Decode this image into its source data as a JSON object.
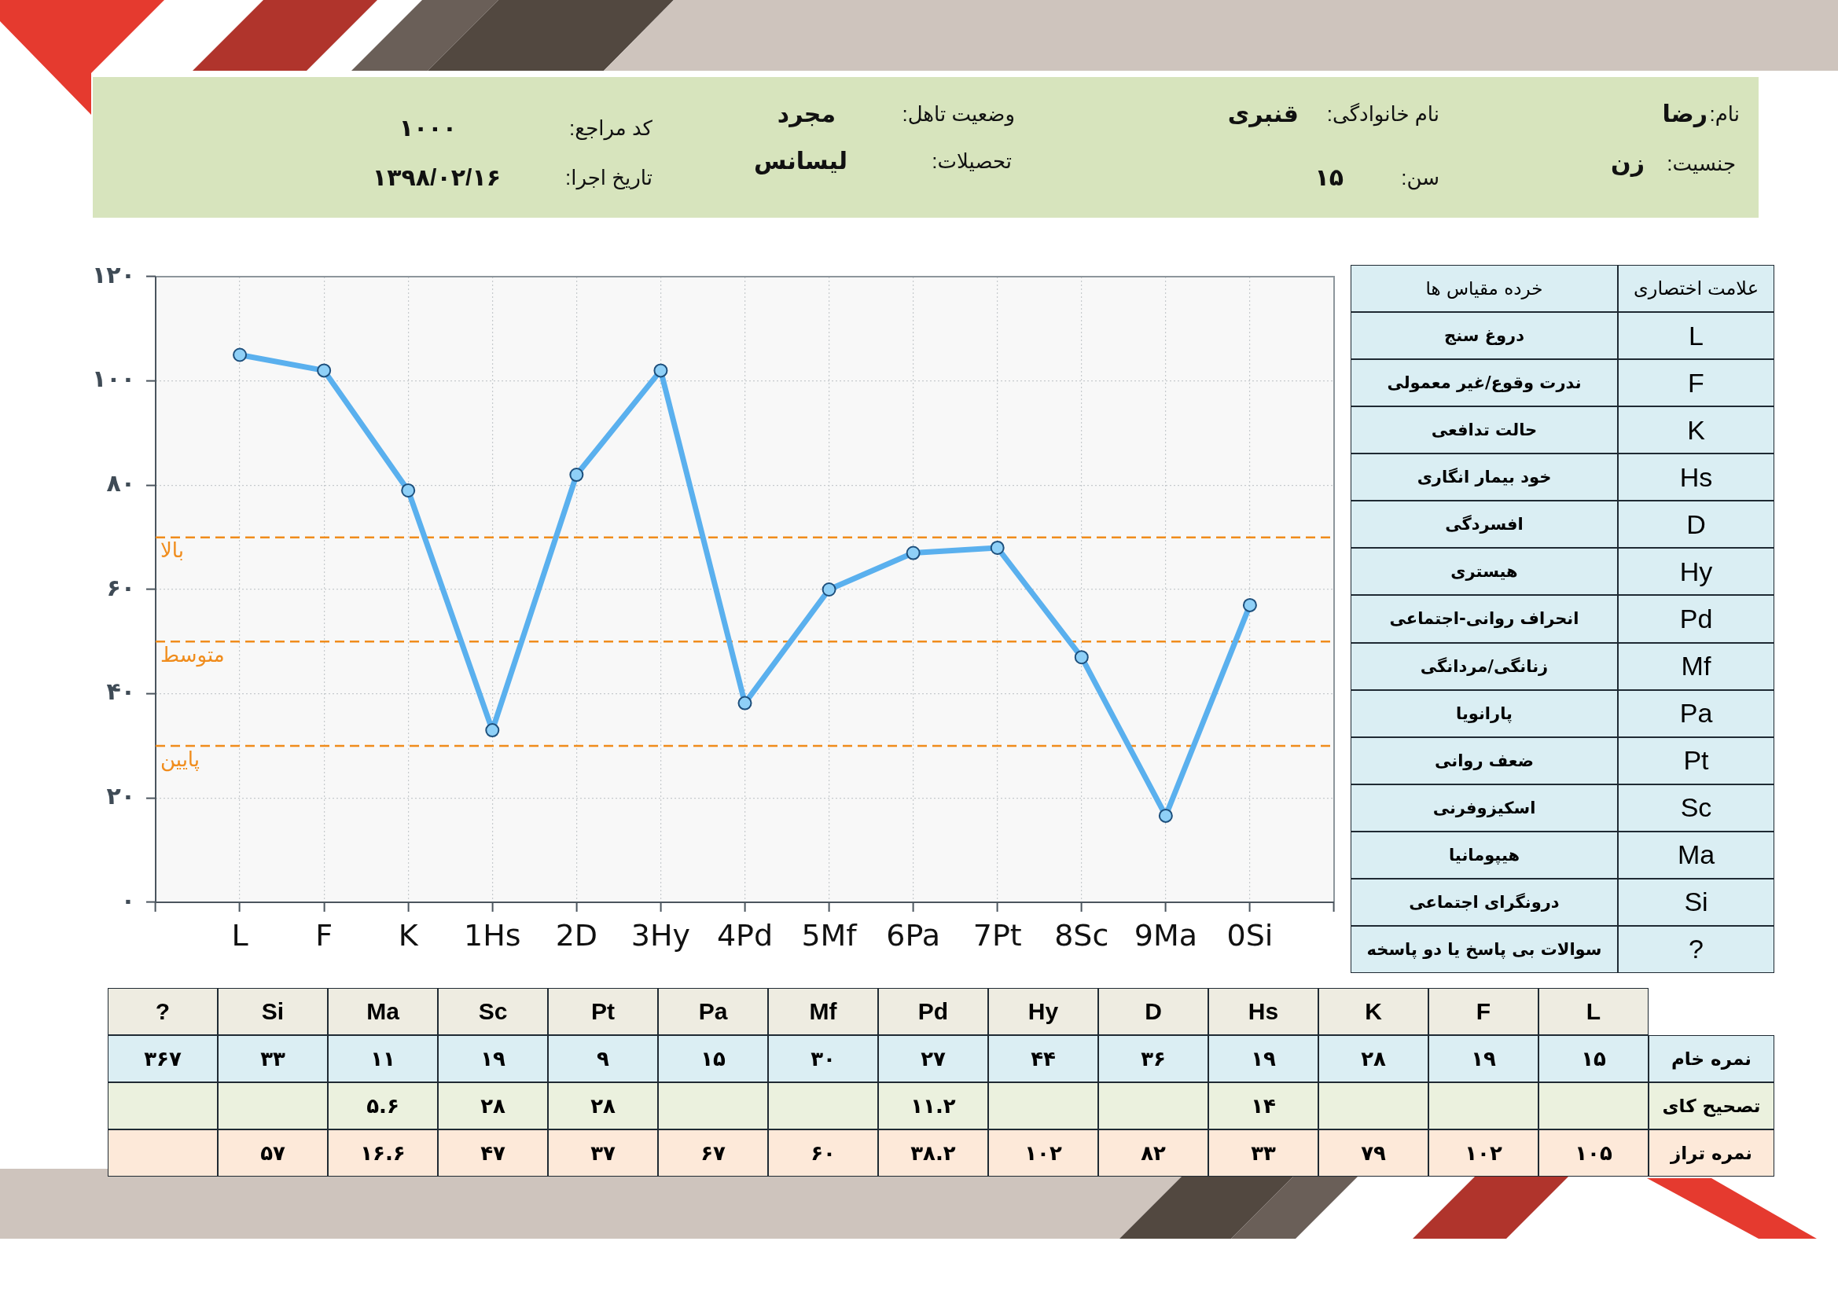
{
  "chart_data": [
    {
      "type": "other",
      "annotations": [
        "نام:",
        "رضا",
        "جنسیت:",
        "زن",
        "نام خانوادگی:",
        "قنبری",
        "سن:",
        "۱۵",
        "وضعیت تاهل:",
        "مجرد",
        "تحصیلات:",
        "لیسانس",
        "کد مراجع:",
        "۱۰۰۰",
        "تاریخ اجرا:",
        "۱۳۹۸/۰۲/۱۶"
      ]
    },
    {
      "type": "line",
      "categories": [
        "L",
        "F",
        "K",
        "1Hs",
        "2D",
        "3Hy",
        "4Pd",
        "5Mf",
        "6Pa",
        "7Pt",
        "8Sc",
        "9Ma",
        "0Si"
      ],
      "values": [
        105,
        102,
        79,
        33,
        82,
        102,
        38.2,
        60,
        67,
        68,
        47,
        16.6,
        57
      ],
      "color": "#5ab0ee",
      "ylim": [
        0,
        120
      ],
      "yticks": [
        {
          "value": 0,
          "label": "۰"
        },
        {
          "value": 20,
          "label": "۲۰"
        },
        {
          "value": 40,
          "label": "۴۰"
        },
        {
          "value": 60,
          "label": "۶۰"
        },
        {
          "value": 80,
          "label": "۸۰"
        },
        {
          "value": 100,
          "label": "۱۰۰"
        },
        {
          "value": 120,
          "label": "۱۲۰"
        }
      ],
      "grid": true,
      "marker": "circle",
      "line_style": "solid",
      "ref_lines": [
        {
          "axis": "y",
          "value": 70,
          "label": "بالا",
          "color": "#f08c1c",
          "line_style": "dashed"
        },
        {
          "axis": "y",
          "value": 50,
          "label": "متوسط",
          "color": "#f08c1c",
          "line_style": "dashed"
        },
        {
          "axis": "y",
          "value": 30,
          "label": "پایین",
          "color": "#f08c1c",
          "line_style": "dashed"
        }
      ]
    },
    {
      "type": "other",
      "annotations": [
        "علامت اختصاری",
        "خرده مقیاس ها",
        "L",
        "دروغ سنج",
        "F",
        "ندرت وقوع/غیر معمولی",
        "K",
        "حالت تدافعی",
        "Hs",
        "خود بیمار انگاری",
        "D",
        "افسردگی",
        "Hy",
        "هیستری",
        "Pd",
        "انحراف روانی-اجتماعی",
        "Mf",
        "زنانگی/مردانگی",
        "Pa",
        "پارانویا",
        "Pt",
        "ضعف روانی",
        "Sc",
        "اسکیزوفرنی",
        "Ma",
        "هیپومانیا",
        "Si",
        "درونگرای اجتماعی",
        "?",
        "سوالات بی پاسخ یا دو پاسخه"
      ]
    },
    {
      "type": "other",
      "categories": [
        "?",
        "Si",
        "Ma",
        "Sc",
        "Pt",
        "Pa",
        "Mf",
        "Pd",
        "Hy",
        "D",
        "Hs",
        "K",
        "F",
        "L"
      ],
      "y_categories": [
        "نمره خام",
        "تصحیح کای",
        "نمره تراز"
      ],
      "annotations": [
        {
          "text": "۳۶۷",
          "x": "?",
          "y": "نمره خام"
        },
        {
          "text": "۳۳",
          "x": "Si",
          "y": "نمره خام"
        },
        {
          "text": "۱۱",
          "x": "Ma",
          "y": "نمره خام"
        },
        {
          "text": "۱۹",
          "x": "Sc",
          "y": "نمره خام"
        },
        {
          "text": "۹",
          "x": "Pt",
          "y": "نمره خام"
        },
        {
          "text": "۱۵",
          "x": "Pa",
          "y": "نمره خام"
        },
        {
          "text": "۳۰",
          "x": "Mf",
          "y": "نمره خام"
        },
        {
          "text": "۲۷",
          "x": "Pd",
          "y": "نمره خام"
        },
        {
          "text": "۴۴",
          "x": "Hy",
          "y": "نمره خام"
        },
        {
          "text": "۳۶",
          "x": "D",
          "y": "نمره خام"
        },
        {
          "text": "۱۹",
          "x": "Hs",
          "y": "نمره خام"
        },
        {
          "text": "۲۸",
          "x": "K",
          "y": "نمره خام"
        },
        {
          "text": "۱۹",
          "x": "F",
          "y": "نمره خام"
        },
        {
          "text": "۱۵",
          "x": "L",
          "y": "نمره خام"
        },
        {
          "text": "۵.۶",
          "x": "Ma",
          "y": "تصحیح کای"
        },
        {
          "text": "۲۸",
          "x": "Sc",
          "y": "تصحیح کای"
        },
        {
          "text": "۲۸",
          "x": "Pt",
          "y": "تصحیح کای"
        },
        {
          "text": "۱۱.۲",
          "x": "Pd",
          "y": "تصحیح کای"
        },
        {
          "text": "۱۴",
          "x": "Hs",
          "y": "تصحیح کای"
        },
        {
          "text": "۵۷",
          "x": "Si",
          "y": "نمره تراز"
        },
        {
          "text": "۱۶.۶",
          "x": "Ma",
          "y": "نمره تراز"
        },
        {
          "text": "۴۷",
          "x": "Sc",
          "y": "نمره تراز"
        },
        {
          "text": "۳۷",
          "x": "Pt",
          "y": "نمره تراز"
        },
        {
          "text": "۶۷",
          "x": "Pa",
          "y": "نمره تراز"
        },
        {
          "text": "۶۰",
          "x": "Mf",
          "y": "نمره تراز"
        },
        {
          "text": "۳۸.۲",
          "x": "Pd",
          "y": "نمره تراز"
        },
        {
          "text": "۱۰۲",
          "x": "Hy",
          "y": "نمره تراز"
        },
        {
          "text": "۸۲",
          "x": "D",
          "y": "نمره تراز"
        },
        {
          "text": "۳۳",
          "x": "Hs",
          "y": "نمره تراز"
        },
        {
          "text": "۷۹",
          "x": "K",
          "y": "نمره تراز"
        },
        {
          "text": "۱۰۲",
          "x": "F",
          "y": "نمره تراز"
        },
        {
          "text": "۱۰۵",
          "x": "L",
          "y": "نمره تراز"
        }
      ]
    }
  ]
}
